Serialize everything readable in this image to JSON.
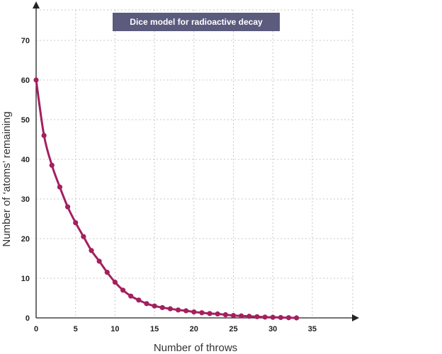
{
  "chart_data": {
    "type": "line",
    "title": "Dice model for radioactive decay",
    "xlabel": "Number of throws",
    "ylabel": "Number of ‘atoms’ remaining",
    "xlim": [
      0,
      40
    ],
    "ylim": [
      0,
      80
    ],
    "xticks": [
      "0",
      "5",
      "10",
      "15",
      "20",
      "25",
      "30",
      "35"
    ],
    "yticks": [
      "0",
      "10",
      "20",
      "30",
      "40",
      "50",
      "60",
      "70"
    ],
    "grid": true,
    "legend": "none",
    "line_color": "#a3205f",
    "series": [
      {
        "x": [
          0,
          1,
          2,
          3,
          4,
          5,
          6,
          7,
          8,
          9,
          10,
          11,
          12,
          13,
          14,
          15,
          16,
          17,
          18,
          19,
          20,
          21,
          22,
          23,
          24,
          25,
          26,
          27,
          28,
          29,
          30,
          31,
          32,
          33
        ],
        "y": [
          60,
          46,
          38.5,
          33,
          28,
          24,
          20.5,
          17,
          14.3,
          11.5,
          9,
          7,
          5.5,
          4.5,
          3.6,
          3,
          2.6,
          2.3,
          2.0,
          1.8,
          1.5,
          1.3,
          1.1,
          1.0,
          0.8,
          0.6,
          0.5,
          0.4,
          0.3,
          0.2,
          0.15,
          0.1,
          0.05,
          0.0
        ]
      }
    ]
  }
}
